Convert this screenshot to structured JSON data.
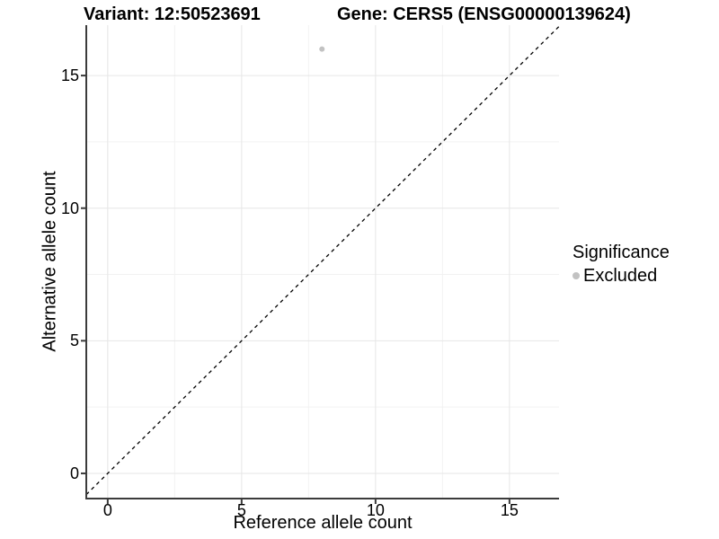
{
  "titles": {
    "left": "Variant: 12:50523691",
    "right": "Gene: CERS5 (ENSG00000139624)"
  },
  "axes": {
    "x_label": "Reference allele count",
    "y_label": "Alternative allele count"
  },
  "legend": {
    "title": "Significance",
    "items": [
      {
        "label": "Excluded",
        "color": "#c2c2c2"
      }
    ]
  },
  "colors": {
    "axis_line": "#3b3b3b",
    "grid_major": "#e6e6e6",
    "grid_minor": "#f2f2f2",
    "reference_line": "#000000",
    "point": "#c2c2c2",
    "text": "#000000",
    "background": "#ffffff"
  },
  "chart_data": {
    "type": "scatter",
    "title": "Variant: 12:50523691 | Gene: CERS5 (ENSG00000139624)",
    "xlabel": "Reference allele count",
    "ylabel": "Alternative allele count",
    "xlim": [
      -0.8,
      16.85
    ],
    "ylim": [
      -0.95,
      16.9
    ],
    "x_ticks": [
      0,
      5,
      10,
      15
    ],
    "y_ticks": [
      0,
      5,
      10,
      15
    ],
    "x_minor_ticks": [
      2.5,
      7.5,
      12.5
    ],
    "y_minor_ticks": [
      2.5,
      7.5,
      12.5
    ],
    "grid": true,
    "legend_position": "right",
    "series": [
      {
        "name": "Excluded",
        "color": "#c2c2c2",
        "point_radius": 3,
        "points": [
          {
            "x": 8,
            "y": 16
          }
        ]
      }
    ],
    "reference_line": {
      "type": "identity",
      "style": "dashed",
      "color": "#000000",
      "dash": "4,4"
    }
  }
}
